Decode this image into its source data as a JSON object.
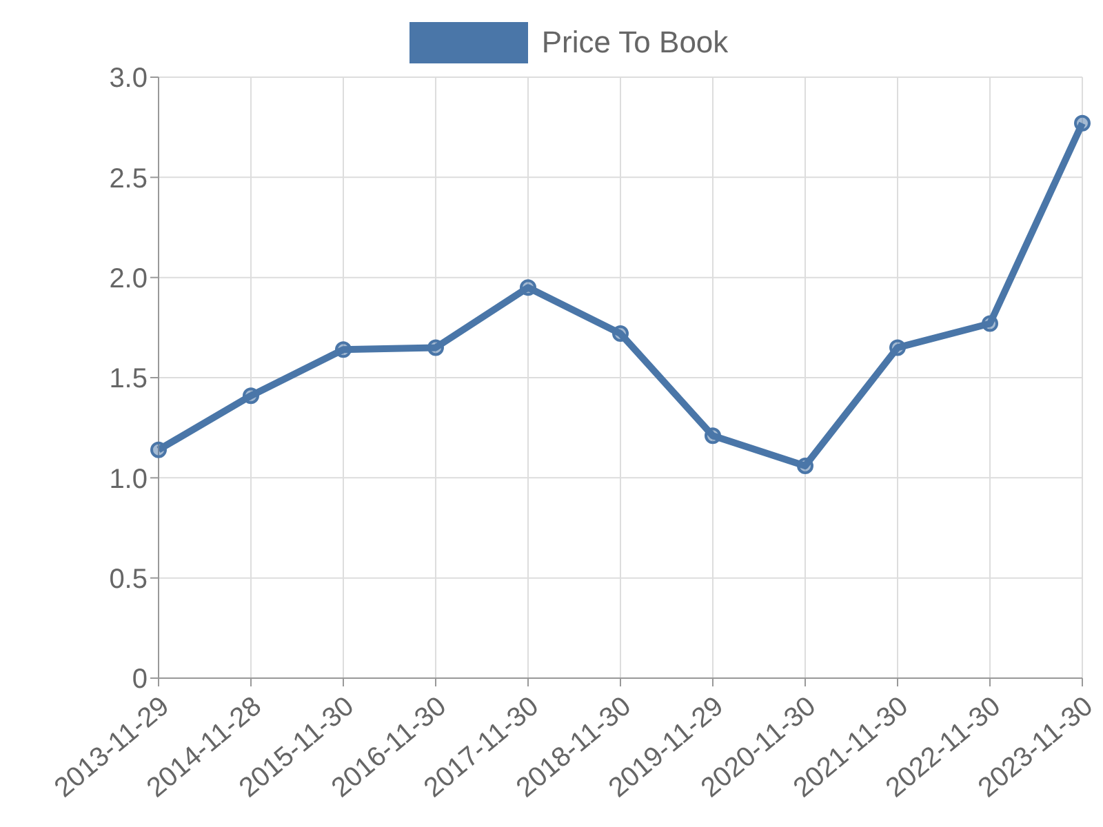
{
  "chart_data": {
    "type": "line",
    "categories": [
      "2013-11-29",
      "2014-11-28",
      "2015-11-30",
      "2016-11-30",
      "2017-11-30",
      "2018-11-30",
      "2019-11-29",
      "2020-11-30",
      "2021-11-30",
      "2022-11-30",
      "2023-11-30"
    ],
    "series": [
      {
        "name": "Price To Book",
        "color": "#4a76a8",
        "values": [
          1.14,
          1.41,
          1.64,
          1.65,
          1.95,
          1.72,
          1.21,
          1.06,
          1.65,
          1.77,
          2.77
        ]
      }
    ],
    "ylim": [
      0,
      3
    ],
    "yticks": [
      0,
      0.5,
      {
        "value": 1,
        "label": "1.0"
      },
      1.5,
      {
        "value": 2,
        "label": "2.0"
      },
      2.5,
      {
        "value": 3,
        "label": "3.0"
      }
    ],
    "grid": true,
    "legend": "top",
    "marker": "circle",
    "line_style": "solid"
  }
}
